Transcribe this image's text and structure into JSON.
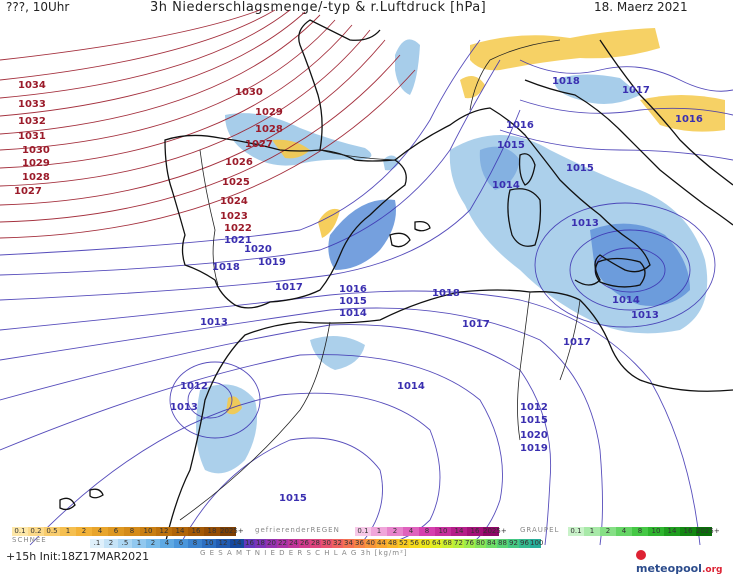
{
  "header": {
    "left": "???, 10Uhr",
    "title": "3h Niederschlagsmenge/-typ & r.Luftdruck [hPa]",
    "date": "18. Maerz 2021"
  },
  "isobars": {
    "labels_red": [
      {
        "text": "1034"
      },
      {
        "text": "1033"
      },
      {
        "text": "1032"
      },
      {
        "text": "1031"
      },
      {
        "text": "1030"
      },
      {
        "text": "1029"
      },
      {
        "text": "1028"
      },
      {
        "text": "1027"
      },
      {
        "text": "1030"
      },
      {
        "text": "1029"
      },
      {
        "text": "1028"
      },
      {
        "text": "1027"
      },
      {
        "text": "1026"
      },
      {
        "text": "1025"
      },
      {
        "text": "1024"
      },
      {
        "text": "1023"
      },
      {
        "text": "1022"
      }
    ],
    "labels_blue": [
      {
        "text": "1021"
      },
      {
        "text": "1020"
      },
      {
        "text": "1019"
      },
      {
        "text": "1018"
      },
      {
        "text": "1017"
      },
      {
        "text": "1016"
      },
      {
        "text": "1015"
      },
      {
        "text": "1014"
      },
      {
        "text": "1013"
      },
      {
        "text": "1012"
      },
      {
        "text": "1013"
      },
      {
        "text": "1018"
      },
      {
        "text": "1017"
      },
      {
        "text": "1016"
      },
      {
        "text": "1015"
      },
      {
        "text": "1014"
      },
      {
        "text": "1013"
      },
      {
        "text": "1012"
      },
      {
        "text": "1015"
      },
      {
        "text": "1020"
      },
      {
        "text": "1019"
      },
      {
        "text": "1018"
      },
      {
        "text": "1017"
      },
      {
        "text": "1016"
      },
      {
        "text": "1015"
      },
      {
        "text": "1014"
      },
      {
        "text": "1013"
      },
      {
        "text": "1014"
      },
      {
        "text": "1015"
      },
      {
        "text": "1017"
      }
    ]
  },
  "legend": {
    "rain": {
      "values": [
        "0.1",
        "0.2",
        "0.5",
        "1",
        "2",
        "4",
        "6",
        "8",
        "10",
        "12",
        "14",
        "16",
        "18",
        "2025+"
      ],
      "colors": [
        "#fde7a8",
        "#fbd98a",
        "#f8cc6d",
        "#f5bf50",
        "#f2b238",
        "#e8a52c",
        "#de9822",
        "#d48b1a",
        "#c97f13",
        "#bd720e",
        "#b0650a",
        "#a25907",
        "#944d05",
        "#7e3f03"
      ]
    },
    "freezing": {
      "title": "gefrierenderREGEN",
      "values": [
        "0.1",
        "1",
        "2",
        "4",
        "8",
        "10",
        "14",
        "16",
        "2025+"
      ],
      "colors": [
        "#f7c8e8",
        "#f0a6da",
        "#e884cc",
        "#df62bd",
        "#d540ae",
        "#c62f9c",
        "#b51f8a",
        "#a31278",
        "#8f0766"
      ]
    },
    "hail": {
      "title": "GRAUPEL",
      "values": [
        "0.1",
        "1",
        "2",
        "4",
        "8",
        "10",
        "14",
        "16",
        "2025+"
      ],
      "colors": [
        "#c9f2c9",
        "#a8e9a8",
        "#86df86",
        "#65d465",
        "#45c845",
        "#2fb52f",
        "#1f9e1f",
        "#138713",
        "#097009"
      ]
    },
    "snow": {
      "title": "SCHNEE",
      "values": [
        ".1",
        "2",
        ".5",
        "1",
        "2",
        "4",
        "6",
        "8",
        "10",
        "12",
        "14"
      ],
      "colors": [
        "#dff0fb",
        "#c5e3f7",
        "#abd6f3",
        "#91c8ef",
        "#78bbea",
        "#5fa9e3",
        "#4a96db",
        "#3a82cf",
        "#2c6ec1",
        "#215bb1",
        "#16489f"
      ]
    },
    "total": {
      "title": "G E S A M T N I E D E R S C H L A G   3h   [kg/m²]",
      "values": [
        "1",
        "2",
        ".5",
        "1",
        "2",
        "4",
        "6",
        "8",
        "10",
        "12",
        "14",
        "16",
        "18",
        "20",
        "22",
        "24",
        "26",
        "28",
        "30",
        "32",
        "34",
        "36",
        "40",
        "44",
        "48",
        "52",
        "56",
        "60",
        "64",
        "68",
        "72",
        "76",
        "80",
        "84",
        "88",
        "92",
        "96",
        "100"
      ],
      "colors": [
        "#c8f0f8",
        "#b0e6f4",
        "#98dcf0",
        "#80d2ec",
        "#68c8e8",
        "#50bde3",
        "#40a8dc",
        "#3a8cd6",
        "#3a70cf",
        "#3b54c7",
        "#4a3ec0",
        "#6338bc",
        "#7c34b7",
        "#9533b0",
        "#ac33a6",
        "#c0369a",
        "#d13b8d",
        "#de457e",
        "#e8526f",
        "#ef6160",
        "#f37252",
        "#f68446",
        "#f8963b",
        "#f9a831",
        "#f9ba29",
        "#f8cb22",
        "#f5db1e",
        "#eee81d",
        "#e0ee24",
        "#cdf02f",
        "#b7ef3c",
        "#9fec4a",
        "#86e659",
        "#6ede68",
        "#58d476",
        "#45c883",
        "#35bb8f",
        "#28ad9a"
      ]
    }
  },
  "footer": {
    "left": "+15h  Init:18Z17MAR2021",
    "brand_main": "meteopool",
    "brand_tld": ".org"
  },
  "colors": {
    "isobar_high": "#9b1b2a",
    "isobar_low": "#3a2fb0",
    "coast": "#111111",
    "border": "#222222",
    "rain": "#f5c94a",
    "snow": "#9dc8e8",
    "precip_blue": "#5d8fd8"
  }
}
